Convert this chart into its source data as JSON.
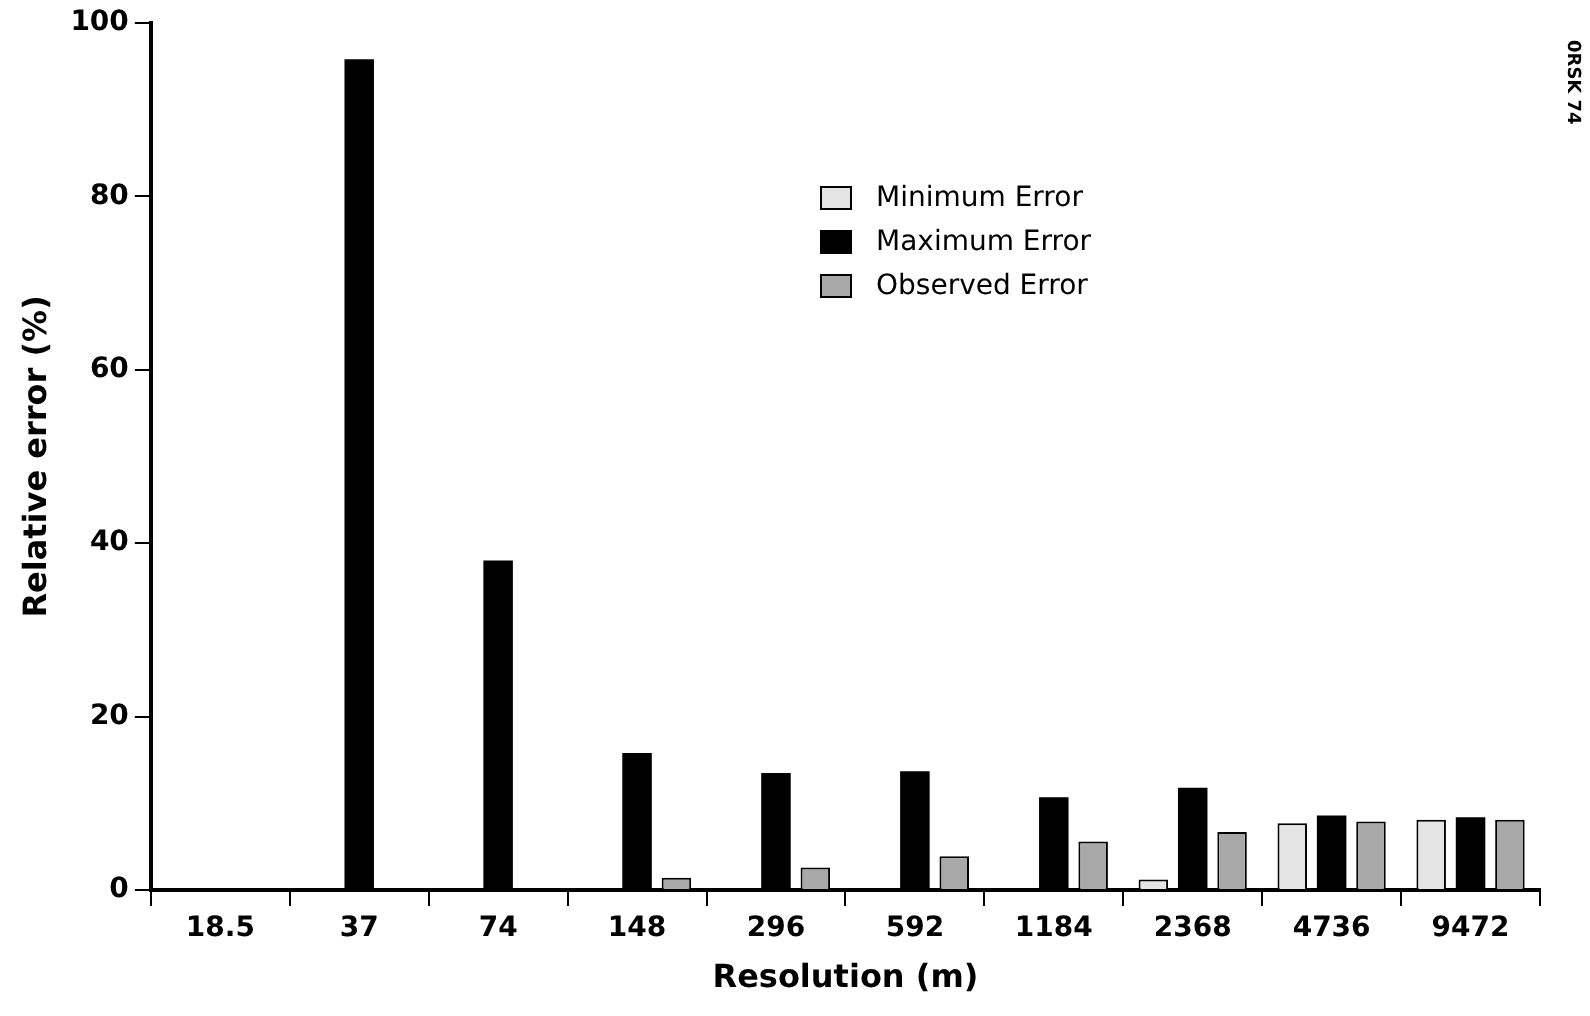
{
  "chart_data": {
    "type": "bar",
    "xlabel": "Resolution (m)",
    "ylabel": "Relative error (%)",
    "categories": [
      "18.5",
      "37",
      "74",
      "148",
      "296",
      "592",
      "1184",
      "2368",
      "4736",
      "9472"
    ],
    "series": [
      {
        "name": "Minimum Error",
        "color": "#e4e4e4",
        "values": [
          null,
          null,
          null,
          null,
          null,
          null,
          null,
          1.2,
          7.7,
          8.1
        ]
      },
      {
        "name": "Maximum Error",
        "color": "#000000",
        "values": [
          null,
          95.8,
          38,
          15.8,
          13.5,
          13.7,
          10.7,
          11.8,
          8.6,
          8.4
        ]
      },
      {
        "name": "Observed Error",
        "color": "#a8a8a8",
        "values": [
          null,
          null,
          null,
          1.4,
          2.6,
          3.9,
          5.6,
          6.7,
          7.9,
          8.1
        ]
      }
    ],
    "ylim": [
      0,
      100
    ],
    "yticks": [
      0,
      20,
      40,
      60,
      80,
      100
    ],
    "grid": false,
    "legend": "top right",
    "annotations": [
      "0RSK 74"
    ]
  }
}
